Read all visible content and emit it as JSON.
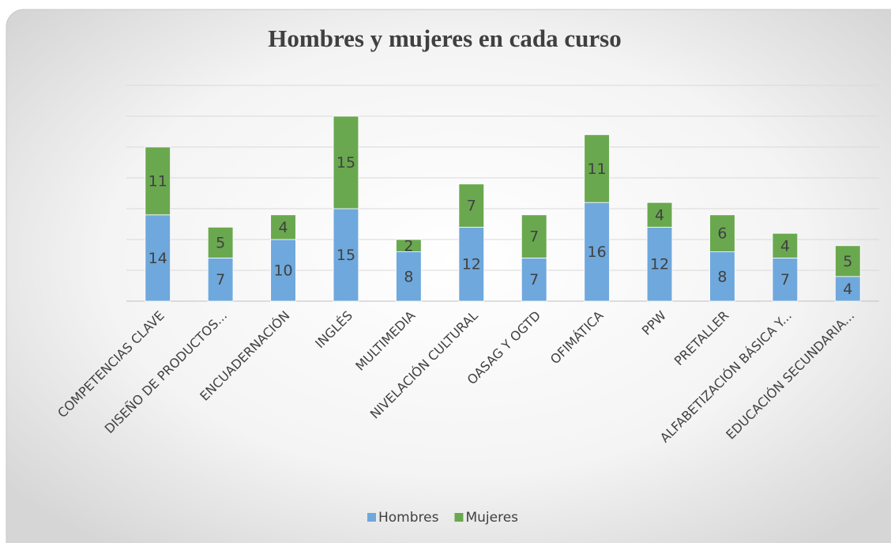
{
  "chart_data": {
    "type": "stacked_bar",
    "title": "Hombres y mujeres en cada curso",
    "categories": [
      "COMPETENCIAS CLAVE",
      "DISEÑO DE PRODUCTOS...",
      "ENCUADERNACIÓN",
      "INGLÉS",
      "MULTIMEDIA",
      "NIVELACIÓN CULTURAL",
      "OASAG Y OGTD",
      "OFIMÁTICA",
      "PPW",
      "PRETALLER",
      "ALFABETIZACIÓN BÁSICA Y...",
      "EDUCACIÓN SECUNDARIA..."
    ],
    "series": [
      {
        "name": "Hombres",
        "color": "#6fa8dc",
        "values": [
          14,
          7,
          10,
          15,
          8,
          12,
          7,
          16,
          12,
          8,
          7,
          4
        ]
      },
      {
        "name": "Mujeres",
        "color": "#6aa84f",
        "values": [
          11,
          5,
          4,
          15,
          2,
          7,
          7,
          11,
          4,
          6,
          4,
          5
        ]
      }
    ],
    "ylim": [
      0,
      35
    ],
    "yticks": [
      0,
      5,
      10,
      15,
      20,
      25,
      30,
      35
    ],
    "grid": true,
    "legend": "bottom"
  }
}
